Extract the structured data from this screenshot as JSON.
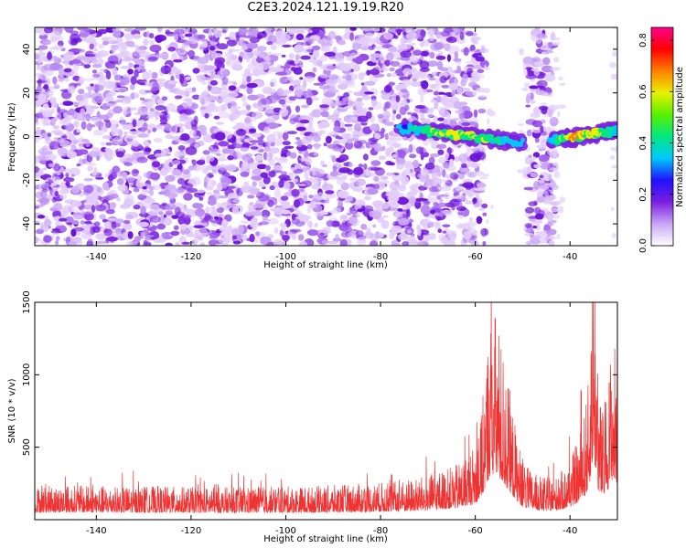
{
  "title": "C2E3.2024.121.19.19.R20",
  "chart_data": [
    {
      "type": "heatmap",
      "title": "C2E3.2024.121.19.19.R20",
      "xlabel": "Height of straight line (km)",
      "ylabel": "Frequency (Hz)",
      "xlim": [
        -153,
        -30
      ],
      "ylim": [
        -50,
        50
      ],
      "xticks": [
        -140,
        -120,
        -100,
        -80,
        -60,
        -40
      ],
      "yticks": [
        -40,
        -20,
        0,
        20,
        40
      ],
      "colorbar": {
        "label": "Normalized spectral amplitude",
        "range": [
          0.0,
          0.85
        ],
        "ticks": [
          0.0,
          0.2,
          0.4,
          0.6,
          0.8
        ],
        "colors": [
          "#ffffff",
          "#c9a6f5",
          "#7a1fe0",
          "#2010ff",
          "#00c8ff",
          "#00e880",
          "#58f000",
          "#e8f000",
          "#ff8000",
          "#ff0000",
          "#ff0090"
        ]
      },
      "features": [
        {
          "name": "noise",
          "x_range": [
            -153,
            -58
          ],
          "freq_range": [
            -50,
            50
          ],
          "amplitude": 0.05
        },
        {
          "name": "gap",
          "x_range": [
            -58,
            -49
          ],
          "freq_range": [
            -50,
            50
          ],
          "amplitude": 0.0
        },
        {
          "name": "noise-band",
          "x_range": [
            -49,
            -43
          ],
          "freq_range": [
            -50,
            50
          ],
          "amplitude": 0.05
        },
        {
          "name": "gap",
          "x_range": [
            -43,
            -30
          ],
          "freq_range": [
            -50,
            50
          ],
          "amplitude": 0.0
        },
        {
          "name": "signal-1",
          "x_range": [
            -76,
            -50
          ],
          "freq_center": [
            4,
            -3
          ],
          "amplitude": 0.6
        },
        {
          "name": "signal-2",
          "x_range": [
            -44,
            -30
          ],
          "freq_center": [
            -2,
            3
          ],
          "amplitude": 0.75
        }
      ]
    },
    {
      "type": "line",
      "xlabel": "Height of straight line (km)",
      "ylabel": "SNR (10 * v/v)",
      "xlim": [
        -153,
        -30
      ],
      "ylim": [
        0,
        1500
      ],
      "xticks": [
        -140,
        -120,
        -100,
        -80,
        -60,
        -40
      ],
      "yticks": [
        500,
        1000,
        1500
      ],
      "color": "#ee3333",
      "series": [
        {
          "name": "SNR",
          "x": [
            -153,
            -145,
            -135,
            -125,
            -115,
            -105,
            -95,
            -85,
            -78,
            -72,
            -68,
            -64,
            -62,
            -60,
            -59,
            -58,
            -57,
            -56,
            -55,
            -54,
            -53,
            -52,
            -51,
            -50,
            -49,
            -48,
            -47,
            -46,
            -45,
            -44,
            -43,
            -42,
            -41,
            -40,
            -39,
            -38,
            -37,
            -36,
            -35.5,
            -35,
            -34.5,
            -34,
            -33,
            -32,
            -31,
            -30
          ],
          "values": [
            140,
            145,
            140,
            140,
            135,
            140,
            140,
            150,
            160,
            175,
            200,
            230,
            270,
            320,
            400,
            600,
            850,
            900,
            820,
            700,
            580,
            450,
            340,
            260,
            220,
            200,
            190,
            180,
            175,
            175,
            180,
            200,
            220,
            260,
            300,
            360,
            450,
            600,
            1000,
            1250,
            900,
            550,
            450,
            600,
            800,
            700
          ]
        }
      ]
    }
  ]
}
